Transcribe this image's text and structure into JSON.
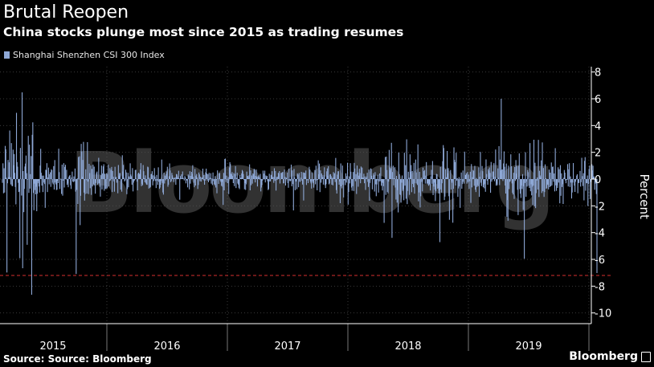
{
  "header": {
    "title": "Brutal Reopen",
    "subtitle": "China stocks plunge most since 2015 as trading resumes"
  },
  "legend": {
    "label": "Shanghai Shenzhen CSI 300 Index",
    "color": "#8ea8d6"
  },
  "footer": {
    "source": "Source: Source: Bloomberg",
    "brand": "Bloomberg"
  },
  "watermark": "Bloomberg",
  "colors": {
    "background": "#000000",
    "series": "#8ea8d6",
    "reference_line": "#d62f2f",
    "grid": "#3a3a3a",
    "axis_text": "#ffffff"
  },
  "chart_data": {
    "type": "bar",
    "series": [
      {
        "name": "Shanghai Shenzhen CSI 300 Index",
        "values": [
          -0.28,
          1.18,
          -1.06,
          0.81,
          -1.01,
          2.48,
          2.22,
          0.11,
          -6.98,
          -0.31,
          1.43,
          0.15,
          1.25,
          3.63,
          0.14,
          -0.4,
          2.69,
          -0.51,
          -0.53,
          2.2,
          1.04,
          1.87,
          0.46,
          -0.59,
          -1.89,
          4.95,
          1.27,
          0.93,
          -0.28,
          -0.97,
          -0.93,
          -5.91,
          2.33,
          0.01,
          -1.23,
          6.48,
          -6.66,
          0.6,
          -2.47,
          -0.73,
          0.94,
          1.16,
          1.76,
          0.44,
          -4.91,
          -0.05,
          3.23,
          -1.03,
          2.57,
          -0.71,
          0.37,
          1.72,
          -8.64,
          3.31,
          4.24,
          -1.04,
          -2.33,
          -0.34,
          -0.82,
          -1.14,
          -0.57,
          -2.4,
          -1.09,
          -0.15,
          -0.31,
          -0.55,
          -1.0,
          1.01,
          2.26,
          0.47,
          -0.49,
          0.26,
          -0.97,
          0.26,
          -0.26,
          -0.37,
          -2.15,
          0.7,
          0.66,
          1.19,
          -0.97,
          0.12,
          0.86,
          -0.39,
          0.36,
          0.51,
          -0.58,
          0.74,
          0.66,
          -0.27,
          -0.39,
          0.97,
          -0.78,
          1.42,
          -0.26,
          -0.39,
          -0.82,
          -0.79,
          -0.12,
          -0.3,
          2.27,
          0.52,
          -0.74,
          0.03,
          -0.04,
          -1.11,
          1.08,
          -1.24,
          -0.12,
          1.19,
          -0.63,
          0.91,
          1.07,
          -0.03,
          0.69,
          -0.43,
          -0.32,
          -0.61,
          0.16,
          0.25,
          0.3,
          -0.46,
          -0.74,
          0.13,
          0.56,
          -0.18,
          -0.23,
          0.2,
          -0.17,
          0.79,
          -0.94,
          -7.09,
          -0.81,
          0.06,
          -1.86,
          1.65,
          -0.02,
          1.7,
          -3.44,
          -1.25,
          2.63,
          2.06,
          0.17,
          1.43,
          2.78,
          -1.01,
          -1.61,
          -1.12,
          0.73,
          -0.08,
          -1.08,
          2.76,
          -0.19,
          -1.12,
          1.14,
          0.45,
          -0.68,
          1.01,
          -1.18,
          0.76,
          -0.55,
          1.08,
          -0.4,
          0.93,
          -0.47,
          -1.09,
          -0.29,
          0.45,
          0.56,
          -0.41,
          -0.33,
          1.59,
          -0.32,
          -0.58,
          -1.31,
          0.29,
          1.01,
          -0.77,
          0.42,
          0.95,
          1.11,
          -0.87,
          0.4,
          -0.73,
          -0.74,
          0.43,
          -0.69,
          0.37,
          1.07,
          -0.54,
          -0.16,
          0.82,
          -0.1,
          0.69,
          0.91,
          -0.97,
          0.61,
          0.18,
          -0.17,
          -0.94,
          0.92,
          0.12,
          0.16,
          -0.27,
          -0.01,
          -1.06,
          1.05,
          0.26,
          0.45,
          0.45,
          -0.79,
          -0.01,
          -0.94,
          1.78,
          0.57,
          1.06,
          0.09,
          -0.18,
          -0.1,
          0.7,
          0.5,
          -1.13,
          -0.75,
          0.47,
          -0.61,
          0.2,
          0.04,
          1.18,
          0.34,
          0.21,
          -0.42,
          0.82,
          -0.92,
          -0.26,
          -0.12,
          -0.09,
          0.67,
          0.7,
          0.03,
          -0.19,
          -0.84,
          0.4,
          0.48,
          0.39,
          0.37,
          0.71,
          1.19,
          -0.53,
          -0.35,
          -0.46,
          1.05,
          0.59,
          0.08,
          -0.24,
          0.28,
          -0.32,
          -0.41,
          -0.43,
          0.93,
          0.88,
          -0.71,
          0.1,
          -0.65,
          -0.59,
          0.37,
          0.39,
          0.59,
          -0.47,
          0.28,
          -0.15,
          0.82,
          0.19,
          -0.14,
          -0.67,
          0.31,
          -0.11,
          -0.43,
          0.88,
          -0.2,
          -0.73,
          -0.63,
          -0.42,
          -0.14,
          1.46,
          -0.29,
          -1.0,
          -1.16,
          0.48,
          -0.33,
          0.26,
          -0.09,
          0.39,
          0.57,
          0.92,
          -0.57,
          -0.42,
          0.21,
          1.17,
          0.64,
          -0.23,
          -0.15,
          0.46,
          0.28,
          0.11,
          -0.22,
          0.07,
          0.1,
          0.13,
          -0.43,
          0.38,
          0.35,
          0.19,
          0.06,
          0.62,
          0.05,
          -1.54,
          0.23,
          0.03,
          0.35,
          0.05,
          0.57,
          0.09,
          0.01,
          -0.1,
          0.23,
          0.13,
          -0.32,
          -0.11,
          -0.05,
          -0.62,
          0.35,
          0.26,
          -0.77,
          0.59,
          -0.34,
          0.24,
          0.54,
          0.4,
          1.04,
          0.16,
          -0.27,
          -0.61,
          0.76,
          -0.48,
          0.26,
          0.38,
          0.12,
          -0.74,
          -0.44,
          0.49,
          0.35,
          -0.16,
          0.18,
          -0.19,
          0.09,
          0.12,
          0.78,
          -0.09,
          0.3,
          -0.42,
          -0.12,
          0.51,
          0.78,
          0.42,
          -0.12,
          0.36,
          -0.24,
          0.47,
          -0.1,
          0.1,
          0.44,
          -0.34,
          0.04,
          -0.45,
          0.49,
          -0.15,
          -0.38,
          -0.46,
          0.22,
          -0.63,
          -0.06,
          -1.06,
          0.65,
          0.03,
          -0.36,
          0.42,
          0.46,
          -0.11,
          -0.22,
          -0.51,
          -0.21,
          -0.57,
          -1.93,
          0.46,
          -0.84,
          1.5,
          1.53,
          -0.22,
          0.26,
          -0.04,
          -0.3,
          0.15,
          -1.12,
          0.87,
          1.26,
          1.12,
          0.4,
          0.35,
          0.52,
          0.23,
          -0.3,
          0.45,
          -0.53,
          0.38,
          0.97,
          -0.67,
          0.09,
          0.47,
          -0.33,
          -0.41,
          -0.65,
          -0.75,
          0.29,
          0.08,
          0.11,
          0.43,
          0.68,
          0.58,
          0.38,
          -0.06,
          -0.76,
          -0.3,
          -0.81,
          -0.39,
          0.56,
          0.24,
          0.22,
          0.1,
          0.28,
          1.1,
          -0.84,
          0.65,
          -0.46,
          0.27,
          -0.34,
          0.42,
          0.35,
          0.77,
          0.72,
          -0.25,
          0.24,
          0.71,
          0.17,
          -0.55,
          0.21,
          0.28,
          0.13,
          -0.04,
          0.39,
          -0.92,
          -0.63,
          -0.44,
          -0.11,
          0.63,
          0.41,
          -0.02,
          0.63,
          -0.25,
          0.27,
          0.14,
          0.24,
          -0.16,
          -0.82,
          -0.75,
          0.4,
          -0.18,
          -0.16,
          0.32,
          0.28,
          0.59,
          0.1,
          0.17,
          -0.28,
          0.81,
          -0.13,
          0.61,
          -0.86,
          0.16,
          -0.07,
          0.18,
          0.47,
          0.38,
          0.6,
          -0.33,
          -0.02,
          0.46,
          0.46,
          0.5,
          0.54,
          -0.32,
          -0.31,
          0.71,
          0.18,
          -0.48,
          0.1,
          0.08,
          0.49,
          -0.3,
          -0.65,
          0.78,
          -0.1,
          -0.17,
          -0.12,
          1.08,
          -0.54,
          0.65,
          -0.37,
          -2.34,
          0.76,
          0.14,
          -0.83,
          -0.18,
          -0.07,
          -0.76,
          0.43,
          0.34,
          -0.61,
          0.46,
          -0.2,
          -0.2,
          0.11,
          0.54,
          -0.12,
          -0.41,
          0.5,
          -1.6,
          0.48,
          0.46,
          0.18,
          0.64,
          -0.44,
          -0.09,
          -0.01,
          -0.3,
          -0.02,
          0.92,
          0.71,
          -0.19,
          -0.32,
          -0.71,
          0.5,
          -0.19,
          -0.31,
          -0.64,
          -0.06,
          0.68,
          -0.39,
          1.0,
          -0.09,
          -0.84,
          -0.06,
          1.4,
          0.36,
          1.16,
          -0.97,
          0.65,
          -0.27,
          0.42,
          0.29,
          0.16,
          -0.41,
          0.28,
          0.88,
          -0.45,
          -0.67,
          -0.38,
          0.58,
          0.8,
          0.25,
          0.96,
          -0.39,
          -0.32,
          0.34,
          0.37,
          0.22,
          -0.42,
          0.09,
          -0.47,
          0.52,
          0.14,
          0.44,
          -0.22,
          1.58,
          -0.82,
          -1.08,
          0.33,
          0.58,
          0.59,
          -0.42,
          -0.18,
          -1.8,
          1.17,
          -0.54,
          -0.69,
          1.01,
          -0.43,
          -1.37,
          -0.06,
          -0.11,
          -0.45,
          0.43,
          -0.26,
          0.22,
          1.22,
          -1.91,
          -0.96,
          0.2,
          -0.32,
          1.19,
          0.55,
          -0.63,
          -0.87,
          -0.53,
          0.53,
          -0.89,
          1.21,
          0.79,
          -0.16,
          0.37,
          -1.11,
          1.01,
          0.5,
          -0.57,
          0.26,
          0.77,
          0.45,
          -0.31,
          0.94,
          0.12,
          0.86,
          0.1,
          0.11,
          0.4,
          -0.31,
          0.2,
          -0.81,
          0.09,
          0.2,
          0.47,
          -0.21,
          -0.59,
          0.71,
          -1.62,
          -0.29,
          0.8,
          0.76,
          0.25,
          -0.77,
          0.08,
          0.44,
          0.29,
          -0.93,
          0.52,
          -0.39,
          -1.28,
          -0.4,
          -0.09,
          0.32,
          -1.01,
          -0.18,
          0.42,
          -0.16,
          0.88,
          -0.5,
          -0.26,
          -0.85,
          -0.29,
          -0.53,
          -3.27,
          -0.02,
          1.65,
          -1.18,
          1.68,
          0.68,
          -0.96,
          -1.07,
          -0.19,
          2.18,
          0.87,
          0.67,
          0.8,
          2.71,
          -4.39,
          0.53,
          1.0,
          -0.47,
          0.07,
          0.89,
          -0.63,
          -1.53,
          0.24,
          -1.76,
          -0.82,
          -2.49,
          1.98,
          0.37,
          -1.15,
          -1.19,
          -1.76,
          -0.27,
          0.27,
          -0.88,
          -0.75,
          -1.58,
          1.97,
          -0.49,
          1.04,
          -1.47,
          2.97,
          -1.87,
          -0.89,
          0.55,
          0.1,
          -1.18,
          1.85,
          0.55,
          1.05,
          -0.98,
          0.6,
          -0.36,
          -0.61,
          1.21,
          -1.09,
          -0.31,
          1.46,
          0.5,
          -0.33,
          -0.44,
          2.59,
          -1.66,
          -1.0,
          0.54,
          -2.12,
          -1.28,
          0.1,
          -0.21,
          -0.92,
          0.86,
          0.07,
          0.6,
          0.68,
          -0.34,
          0.26,
          1.27,
          -0.34,
          -0.39,
          -0.3,
          -0.5,
          -0.44,
          -0.36,
          -0.85,
          0.2,
          0.69,
          -0.35,
          1.35,
          -1.2,
          -0.56,
          -0.26,
          -0.79,
          -1.64,
          -0.91,
          0.39,
          0.36,
          -0.72,
          -0.67,
          -1.08,
          -0.84,
          -4.71,
          0.91,
          -0.77,
          -1.01,
          -0.31,
          1.34,
          2.54,
          2.32,
          -1.57,
          -1.31,
          0.73,
          0.14,
          0.11,
          2.1,
          0.43,
          0.82,
          -1.28,
          -3.04,
          -0.03,
          0.68,
          -0.78,
          -0.1,
          -0.27,
          -3.26,
          -0.72,
          2.37,
          1.44,
          1.27,
          -0.48,
          1.97,
          -0.11,
          0.06,
          -1.33,
          -0.7,
          0.15,
          -0.55,
          -2.15,
          -0.04,
          0.49,
          -0.72,
          -0.37,
          0.64,
          -0.2,
          -0.34,
          2.05,
          0.3,
          0.31,
          0.43,
          -0.34,
          0.53,
          -0.22,
          0.34,
          -0.73,
          -0.17,
          0.55,
          -1.78,
          1.12,
          -0.62,
          0.14,
          0.68,
          0.62,
          -0.5,
          0.99,
          -0.79,
          -0.97,
          0.08,
          -0.59,
          -0.44,
          -0.53,
          0.88,
          -1.33,
          0.18,
          2.03,
          -0.27,
          -0.52,
          0.98,
          0.59,
          -0.61,
          -0.42,
          -0.69,
          -0.35,
          -0.95,
          1.47,
          0.38,
          -0.12,
          -0.42,
          0.74,
          0.61,
          0.87,
          0.46,
          -1.02,
          1.28,
          -0.19,
          -0.05,
          0.57,
          0.57,
          1.19,
          -0.16,
          0.17,
          2.21,
          -0.49,
          -0.35,
          -0.47,
          0.8,
          0.1,
          2.46,
          -0.45,
          1.45,
          0.65,
          6.0,
          0.72,
          0.72,
          -0.14,
          1.17,
          2.07,
          0.92,
          -0.48,
          -1.08,
          1.16,
          -2.82,
          -1.57,
          -3.11,
          1.0,
          -0.75,
          -0.21,
          -0.16,
          1.85,
          0.96,
          -0.32,
          -1.03,
          -1.15,
          0.47,
          -1.48,
          0.9,
          -0.12,
          1.42,
          0.41,
          0.98,
          -0.8,
          -2.69,
          0.99,
          1.92,
          -0.75,
          -1.09,
          -1.41,
          -0.48,
          -0.74,
          0.37,
          -2.3,
          -0.55,
          -5.95,
          -0.29,
          2.01,
          -1.32,
          -0.19,
          -0.56,
          0.68,
          0.52,
          -0.5,
          -0.66,
          2.69,
          -0.91,
          -0.39,
          -1.22,
          -0.57,
          -1.95,
          -0.49,
          2.94,
          -2.03,
          1.22,
          -2.17,
          -1.05,
          -0.11,
          0.12,
          -0.78,
          2.93,
          -1.34,
          0.62,
          0.27,
          0.13,
          1.4,
          -1.04,
          2.74,
          -0.91,
          0.83,
          -1.33,
          -0.97,
          1.1,
          0.06,
          -0.72,
          -0.68,
          -0.4,
          -0.44,
          -0.77,
          0.71,
          -0.6,
          0.48,
          -0.54,
          1.24,
          -0.47,
          0.91,
          0.94,
          -0.2,
          0.42,
          -0.92,
          2.31,
          -0.47,
          -0.88,
          -0.46,
          -0.66,
          0.88,
          -0.26,
          0.74,
          -1.81,
          1.04,
          -1.25,
          0.43,
          -0.59,
          -0.38,
          -1.86,
          0.1,
          0.68,
          0.48,
          -0.1,
          -0.31,
          -0.06,
          -0.04,
          1.12,
          -0.55,
          0.73,
          1.19,
          -0.59,
          0.2,
          -0.26,
          -1.45,
          -1.0,
          -0.26,
          1.2,
          -0.01,
          -0.49,
          -0.96,
          -0.2,
          -0.04,
          0.26,
          0.36,
          -1.06,
          -0.29,
          -0.29,
          0.01,
          0.61,
          -0.56,
          -0.23,
          1.59,
          0.22,
          -0.52,
          0.44,
          -1.59,
          1.36,
          1.64,
          -0.87,
          -0.29,
          -0.31,
          0.27,
          -2.01,
          -0.37,
          0.75,
          1.01,
          -1.49,
          -0.21,
          0.6,
          1.11,
          0.65,
          1.0,
          0.19,
          0.19,
          -0.8,
          -0.34,
          -0.27,
          -1.12,
          -7.02
        ]
      }
    ],
    "x_axis": {
      "tick_labels": [
        "2015",
        "2016",
        "2017",
        "2018",
        "2019"
      ],
      "range": [
        "2015-01",
        "2020-02"
      ]
    },
    "y_axis": {
      "label": "Percent",
      "ticks": [
        8,
        6,
        4,
        2,
        0,
        -2,
        -4,
        -6,
        -8,
        -10
      ],
      "range": [
        -10.8,
        8.4
      ],
      "position": "right"
    },
    "reference_line": {
      "value": -7.2,
      "style": "dashed"
    },
    "grid": "dotted",
    "legend_position": "top-left"
  }
}
